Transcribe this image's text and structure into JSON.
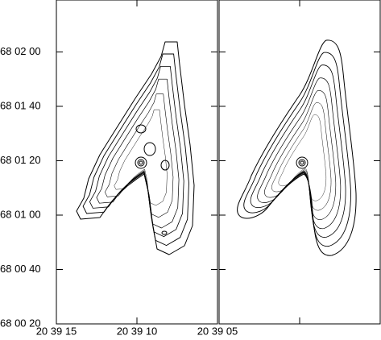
{
  "chart_data": {
    "type": "contour",
    "ylim": [
      20,
      139.1
    ],
    "yticks": [
      {
        "value": 120,
        "label": "68 02 00"
      },
      {
        "value": 100,
        "label": "68 01 40"
      },
      {
        "value": 80,
        "label": "68 01 20"
      },
      {
        "value": 60,
        "label": "68 01 00"
      },
      {
        "value": 40,
        "label": "68 00 40"
      },
      {
        "value": 20,
        "label": "68 00 20"
      }
    ],
    "xlim": [
      15,
      5
    ],
    "xticks": [
      {
        "value": 15,
        "label": "20 39 15"
      },
      {
        "value": 10,
        "label": "20 39 10"
      },
      {
        "value": 5,
        "label": "20 39 05"
      }
    ]
  }
}
